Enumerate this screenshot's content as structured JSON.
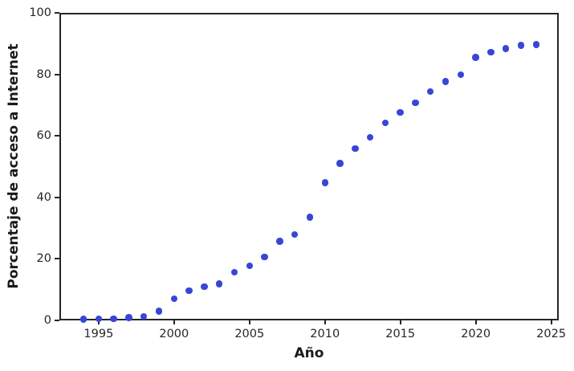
{
  "chart_data": {
    "type": "scatter",
    "title": "",
    "xlabel": "Año",
    "ylabel": "Porcentaje de acceso a Internet",
    "x": [
      1994,
      1995,
      1996,
      1997,
      1998,
      1999,
      2000,
      2001,
      2002,
      2003,
      2004,
      2005,
      2006,
      2007,
      2008,
      2009,
      2010,
      2011,
      2012,
      2013,
      2014,
      2015,
      2016,
      2017,
      2018,
      2019,
      2020,
      2021,
      2022,
      2023,
      2024
    ],
    "values": [
      0.4,
      0.5,
      0.6,
      0.9,
      1.3,
      3.0,
      7.0,
      9.6,
      10.9,
      11.9,
      15.6,
      17.7,
      20.6,
      25.7,
      27.9,
      33.6,
      44.8,
      51.0,
      55.8,
      59.5,
      64.3,
      67.7,
      70.8,
      74.4,
      77.7,
      79.9,
      85.5,
      87.2,
      88.4,
      89.4,
      89.7
    ],
    "xlim": [
      1992.4,
      2025.5
    ],
    "ylim": [
      0,
      100
    ],
    "xticks": [
      1995,
      2000,
      2005,
      2010,
      2015,
      2020,
      2025
    ],
    "yticks": [
      0,
      20,
      40,
      60,
      80,
      100
    ],
    "grid": false,
    "legend": null,
    "marker_color": "#3845d8",
    "spine_color": "#262626",
    "text_color": "#262626"
  }
}
